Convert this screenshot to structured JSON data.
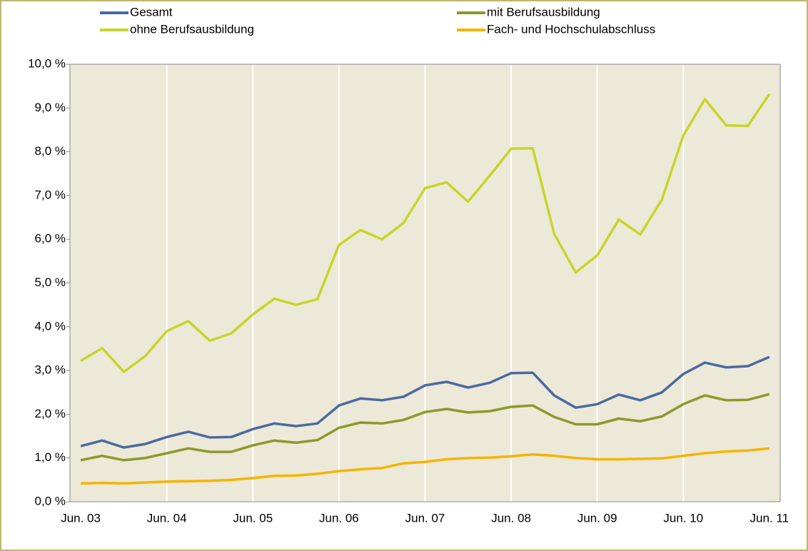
{
  "chart_data": {
    "type": "line",
    "categories": [
      "Jun. 03",
      null,
      null,
      null,
      "Jun. 04",
      null,
      null,
      null,
      "Jun. 05",
      null,
      null,
      null,
      "Jun. 06",
      null,
      null,
      null,
      "Jun. 07",
      null,
      null,
      null,
      "Jun. 08",
      null,
      null,
      null,
      "Jun. 09",
      null,
      null,
      null,
      "Jun. 10",
      null,
      null,
      null,
      "Jun. 11"
    ],
    "series": [
      {
        "name": "Gesamt",
        "color": "#4a6aa0",
        "values": [
          1.27,
          1.4,
          1.24,
          1.32,
          1.48,
          1.6,
          1.47,
          1.48,
          1.66,
          1.79,
          1.73,
          1.79,
          2.2,
          2.36,
          2.32,
          2.4,
          2.66,
          2.74,
          2.61,
          2.72,
          2.94,
          2.95,
          2.43,
          2.15,
          2.23,
          2.45,
          2.32,
          2.5,
          2.92,
          3.18,
          3.07,
          3.1,
          3.31
        ]
      },
      {
        "name": "mit Berufsausbildung",
        "color": "#8a9a2a",
        "values": [
          0.95,
          1.05,
          0.95,
          1.0,
          1.11,
          1.22,
          1.14,
          1.14,
          1.29,
          1.4,
          1.35,
          1.41,
          1.69,
          1.81,
          1.79,
          1.87,
          2.05,
          2.12,
          2.04,
          2.07,
          2.17,
          2.2,
          1.94,
          1.77,
          1.77,
          1.9,
          1.84,
          1.95,
          2.23,
          2.43,
          2.32,
          2.33,
          2.46
        ]
      },
      {
        "name": "ohne Berufsausbildung",
        "color": "#c8d42a",
        "values": [
          3.22,
          3.51,
          2.97,
          3.33,
          3.9,
          4.13,
          3.68,
          3.85,
          4.28,
          4.64,
          4.5,
          4.63,
          5.87,
          6.21,
          6.0,
          6.37,
          7.17,
          7.3,
          6.86,
          7.45,
          8.07,
          8.08,
          6.12,
          5.24,
          5.63,
          6.45,
          6.11,
          6.9,
          8.37,
          9.2,
          8.6,
          8.59,
          9.32
        ]
      },
      {
        "name": "Fach- und Hochschulabschluss",
        "color": "#f5b400",
        "values": [
          0.42,
          0.43,
          0.42,
          0.44,
          0.46,
          0.47,
          0.48,
          0.5,
          0.54,
          0.59,
          0.6,
          0.64,
          0.7,
          0.74,
          0.77,
          0.88,
          0.91,
          0.97,
          1.0,
          1.01,
          1.04,
          1.08,
          1.05,
          1.0,
          0.97,
          0.97,
          0.98,
          0.99,
          1.05,
          1.11,
          1.15,
          1.17,
          1.22
        ]
      }
    ],
    "ylim": [
      0,
      10
    ],
    "yticks": [
      {
        "value": 0,
        "label": "0,0 %"
      },
      {
        "value": 1,
        "label": "1,0 %"
      },
      {
        "value": 2,
        "label": "2,0 %"
      },
      {
        "value": 3,
        "label": "3,0 %"
      },
      {
        "value": 4,
        "label": "4,0 %"
      },
      {
        "value": 5,
        "label": "5,0 %"
      },
      {
        "value": 6,
        "label": "6,0 %"
      },
      {
        "value": 7,
        "label": "7,0 %"
      },
      {
        "value": 8,
        "label": "8,0 %"
      },
      {
        "value": 9,
        "label": "9,0 %"
      },
      {
        "value": 10,
        "label": "10,0 %"
      }
    ],
    "grid": true
  }
}
